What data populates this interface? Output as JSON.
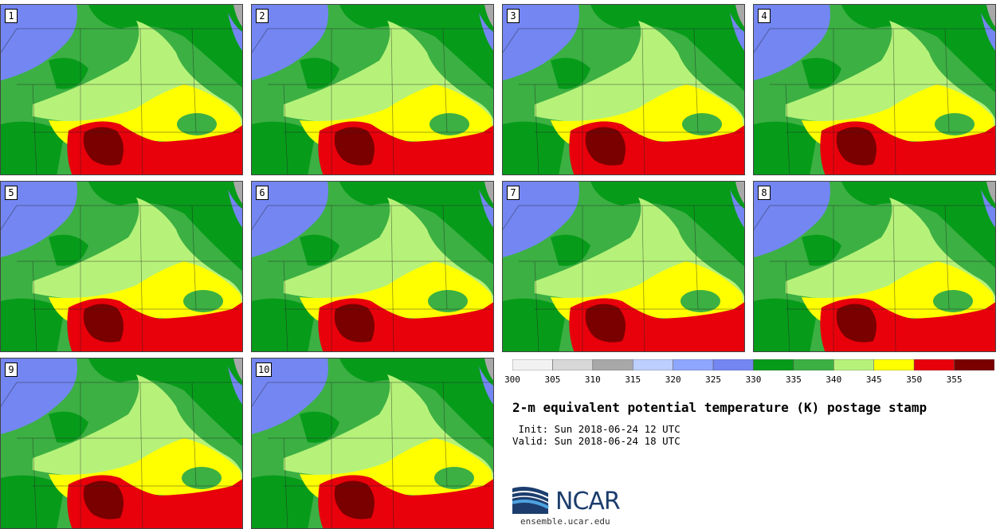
{
  "panels": [
    {
      "label": "1"
    },
    {
      "label": "2"
    },
    {
      "label": "3"
    },
    {
      "label": "4"
    },
    {
      "label": "5"
    },
    {
      "label": "6"
    },
    {
      "label": "7"
    },
    {
      "label": "8"
    },
    {
      "label": "9"
    },
    {
      "label": "10"
    }
  ],
  "colorbar": {
    "ticks": [
      "300",
      "305",
      "310",
      "315",
      "320",
      "325",
      "330",
      "335",
      "340",
      "345",
      "350",
      "355"
    ],
    "colors": [
      "#f2f2f2",
      "#d8d8d8",
      "#a8a8a8",
      "#bccfff",
      "#8fa6ff",
      "#7386f2",
      "#079b1a",
      "#3cb043",
      "#b6f27a",
      "#ffff00",
      "#e8000b",
      "#7a0000"
    ]
  },
  "title": "2-m equivalent potential temperature (K) postage stamp",
  "init": " Init: Sun 2018-06-24 12 UTC",
  "valid": "Valid: Sun 2018-06-24 18 UTC",
  "logo": {
    "text": "NCAR",
    "url": "ensemble.ucar.edu"
  },
  "map_colors": {
    "ocean_low": "#7386f2",
    "green_dark": "#079b1a",
    "green_mid": "#3cb043",
    "green_light": "#b6f27a",
    "yellow": "#ffff00",
    "red": "#e8000b",
    "dark_red": "#7a0000",
    "gray": "#a8a8a8"
  }
}
